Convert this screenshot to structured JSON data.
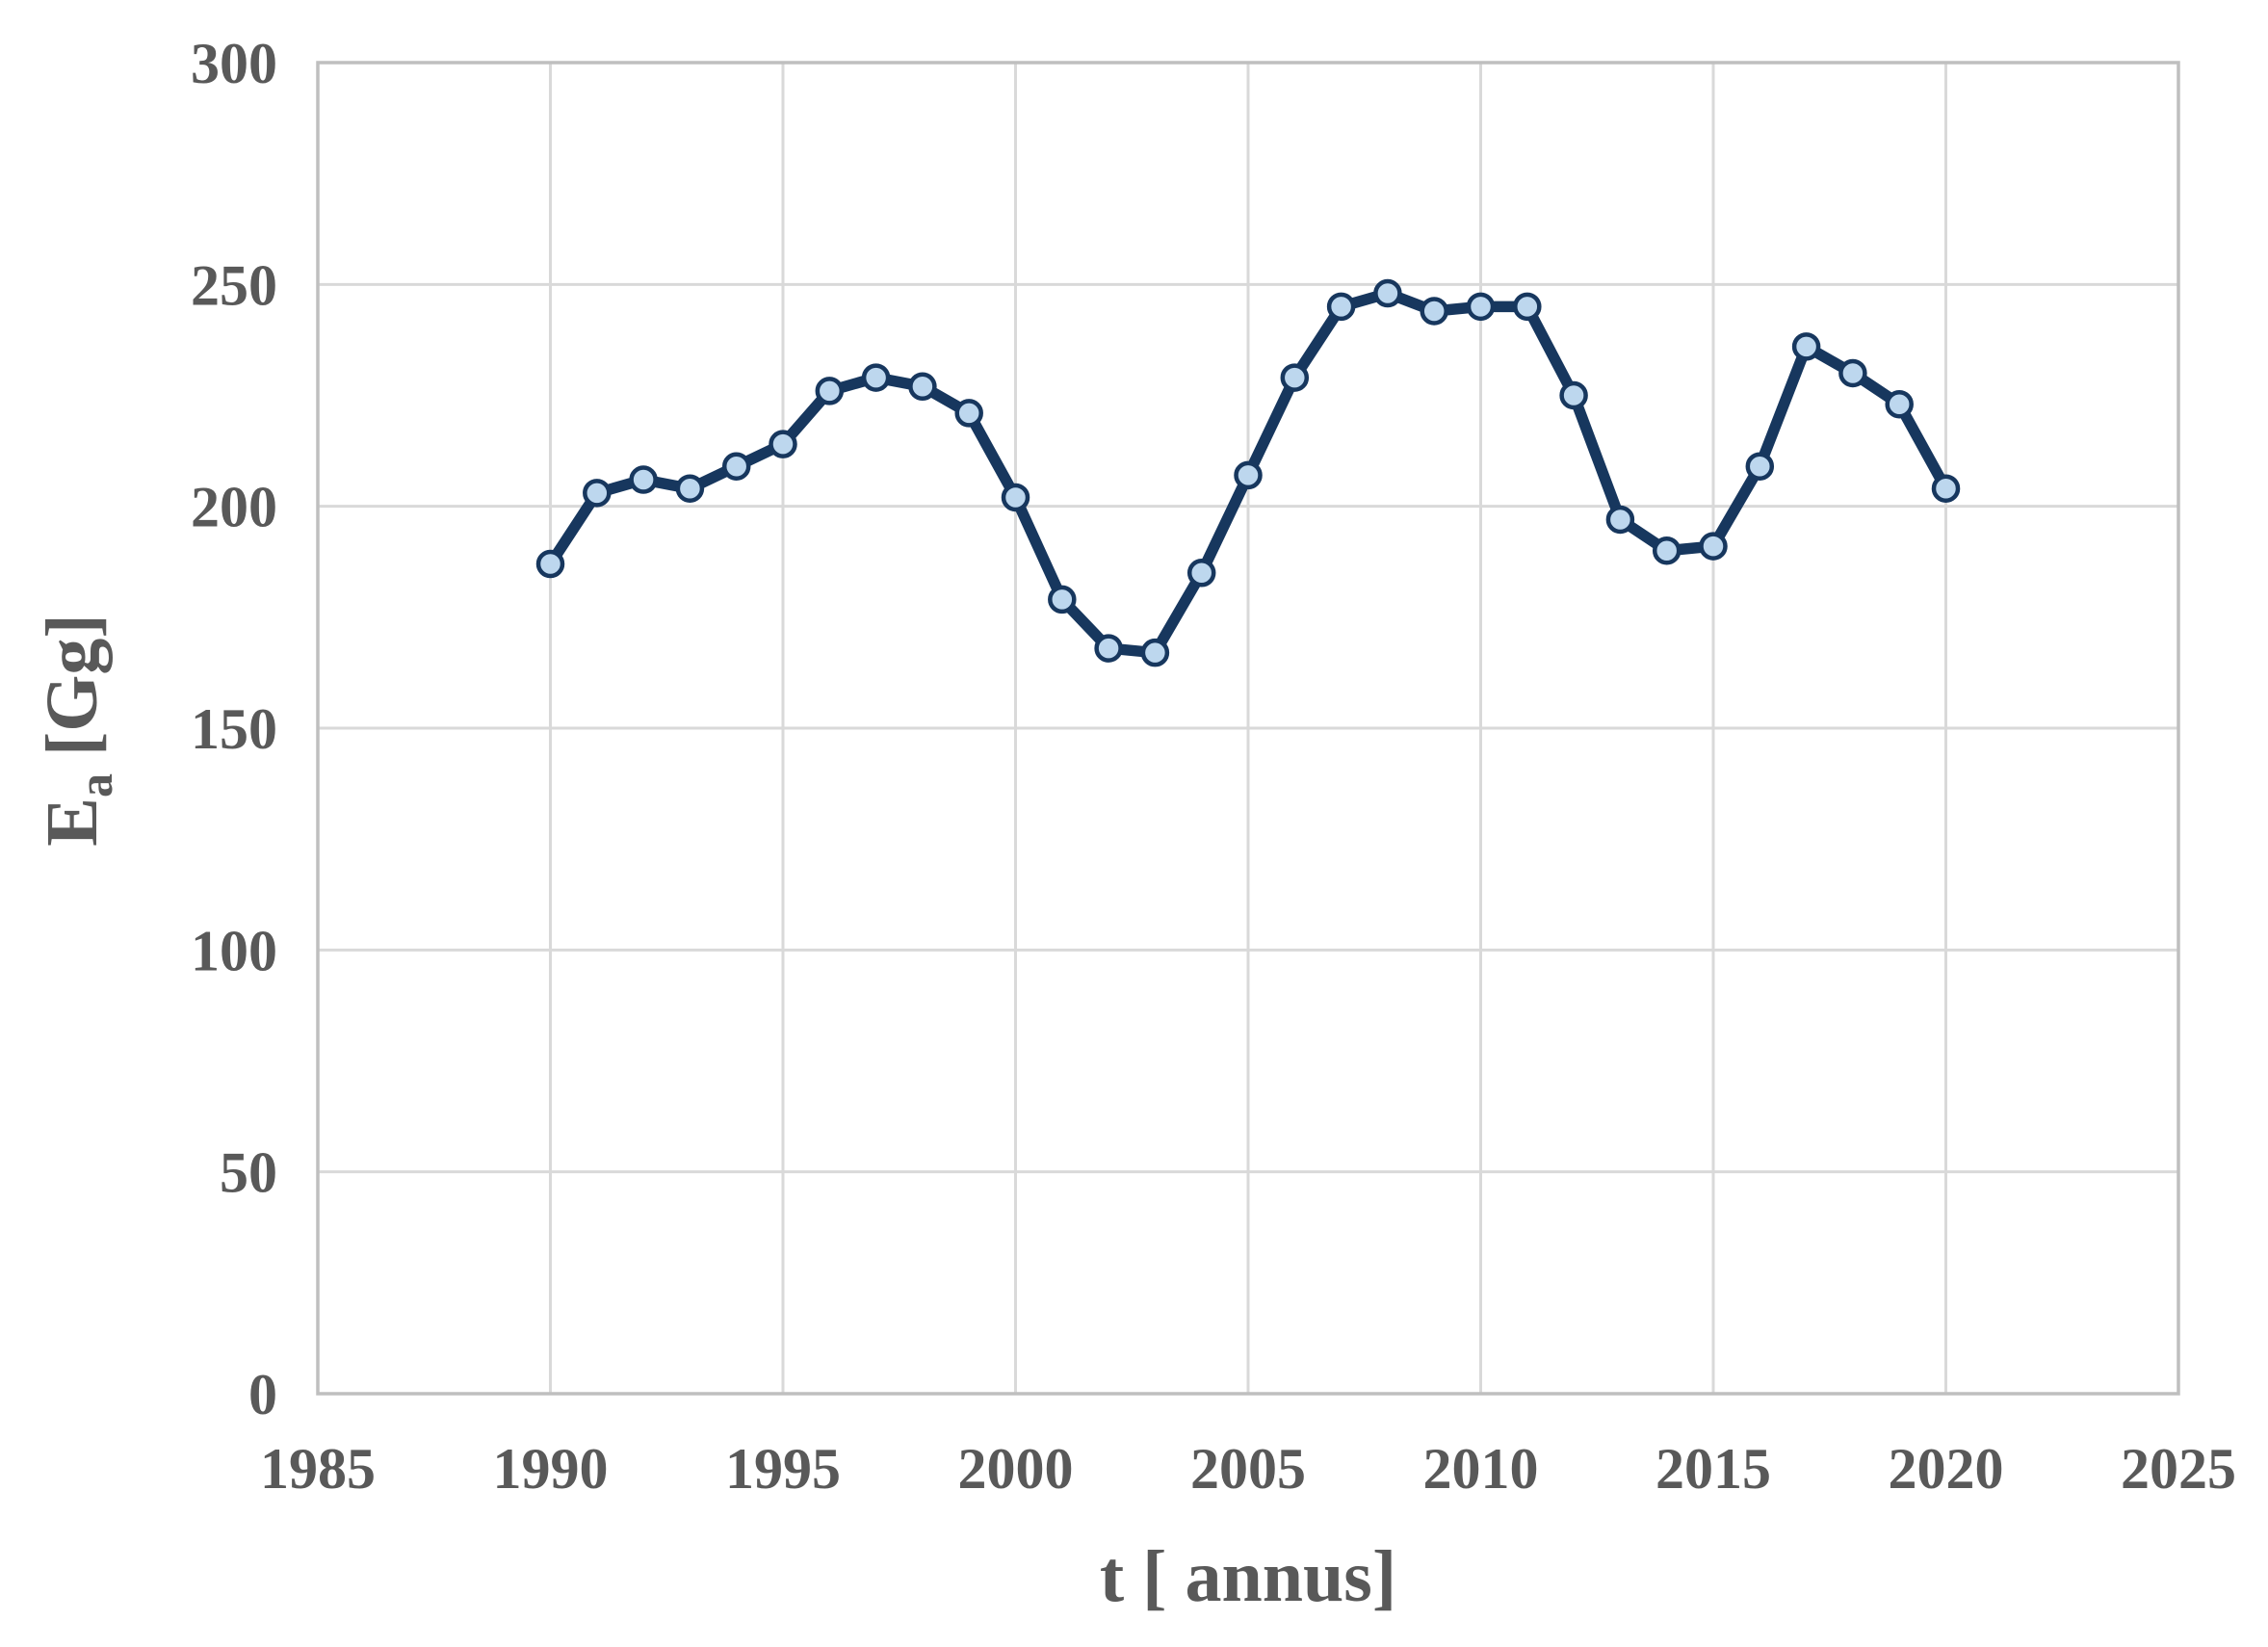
{
  "page": {
    "background": "#FFFFFF"
  },
  "chart_data": {
    "type": "line",
    "title": "",
    "xlabel": "t [ annus]",
    "ylabel": {
      "base": "E",
      "sub": "a",
      "unit": "[Gg]"
    },
    "xlim": [
      1985,
      2025
    ],
    "ylim": [
      0,
      300
    ],
    "xticks": [
      1985,
      1990,
      1995,
      2000,
      2005,
      2010,
      2015,
      2020,
      2025
    ],
    "yticks": [
      0,
      50,
      100,
      150,
      200,
      250,
      300
    ],
    "grid": true,
    "legend": "none",
    "x": [
      1990,
      1991,
      1992,
      1993,
      1994,
      1995,
      1996,
      1997,
      1998,
      1999,
      2000,
      2001,
      2002,
      2003,
      2004,
      2005,
      2006,
      2007,
      2008,
      2009,
      2010,
      2011,
      2012,
      2013,
      2014,
      2015,
      2016,
      2017,
      2018,
      2019,
      2020
    ],
    "series": [
      {
        "name": "Ea",
        "values": [
          187,
          203,
          206,
          204,
          209,
          214,
          226,
          229,
          227,
          221,
          202,
          179,
          168,
          167,
          185,
          207,
          229,
          245,
          248,
          244,
          245,
          245,
          225,
          197,
          190,
          191,
          209,
          236,
          230,
          223,
          204
        ]
      }
    ],
    "colors": {
      "line": "#17375E",
      "marker_fill": "#BDD7EE",
      "marker_stroke": "#17375E",
      "grid": "#D9D9D9",
      "frame": "#BFBFBF",
      "text": "#595959",
      "background": "#FFFFFF"
    }
  }
}
